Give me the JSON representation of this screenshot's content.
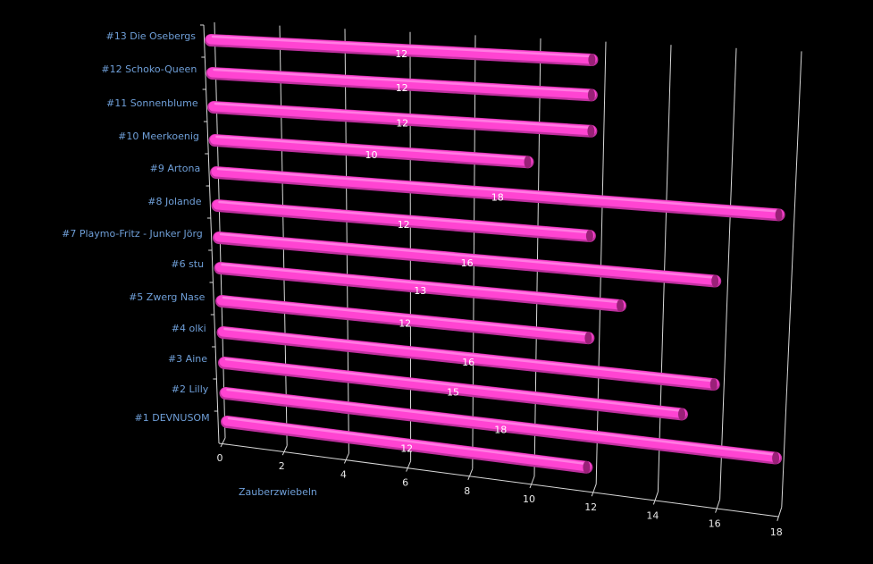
{
  "chart_data": {
    "type": "bar",
    "orientation": "horizontal",
    "style": "3d-cylinder",
    "categories": [
      "#13 Die Osebergs",
      "#12 Schoko-Queen",
      "#11 Sonnenblume",
      "#10 Meerkoenig",
      "#9 Artona",
      "#8 Jolande",
      "#7 Playmo-Fritz - Junker Jörg",
      "#6 stu",
      "#5 Zwerg Nase",
      "#4 olki",
      "#3 Aine",
      "#2 Lilly",
      "#1 DEVNUSOM"
    ],
    "values": [
      12,
      12,
      12,
      10,
      18,
      12,
      16,
      13,
      12,
      16,
      15,
      18,
      12
    ],
    "value_labels": [
      "12",
      "12",
      "12",
      "10",
      "18",
      "12",
      "16",
      "13",
      "12",
      "16",
      "15",
      "18",
      "12"
    ],
    "xlabel": "Zauberzwiebeln",
    "xlim": [
      0,
      18
    ],
    "xticks": [
      "0",
      "2",
      "4",
      "6",
      "8",
      "10",
      "12",
      "14",
      "16",
      "18"
    ],
    "grid": true,
    "colors": {
      "bar": "#ff44d2",
      "label": "#6f9fd8",
      "grid": "#d8d8d8",
      "background": "#000000"
    }
  }
}
